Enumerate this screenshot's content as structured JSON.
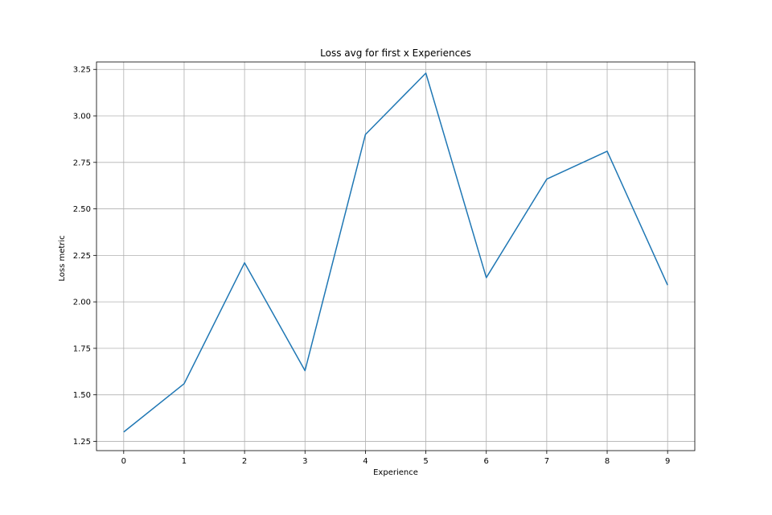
{
  "chart_data": {
    "type": "line",
    "title": "Loss avg for first x Experiences",
    "xlabel": "Experience",
    "ylabel": "Loss metric",
    "grid": true,
    "x": [
      0,
      1,
      2,
      3,
      4,
      5,
      6,
      7,
      8,
      9
    ],
    "series": [
      {
        "name": "Loss avg",
        "color": "#1f77b4",
        "values": [
          1.3,
          1.56,
          2.21,
          1.63,
          2.9,
          3.23,
          2.13,
          2.66,
          2.81,
          2.09
        ]
      }
    ],
    "xlim": [
      -0.45,
      9.45
    ],
    "ylim": [
      1.2,
      3.29
    ],
    "xticks": [
      0,
      1,
      2,
      3,
      4,
      5,
      6,
      7,
      8,
      9
    ],
    "xtick_labels": [
      "0",
      "1",
      "2",
      "3",
      "4",
      "5",
      "6",
      "7",
      "8",
      "9"
    ],
    "yticks": [
      1.25,
      1.5,
      1.75,
      2.0,
      2.25,
      2.5,
      2.75,
      3.0,
      3.25
    ],
    "ytick_labels": [
      "1.25",
      "1.50",
      "1.75",
      "2.00",
      "2.25",
      "2.50",
      "2.75",
      "3.00",
      "3.25"
    ]
  }
}
